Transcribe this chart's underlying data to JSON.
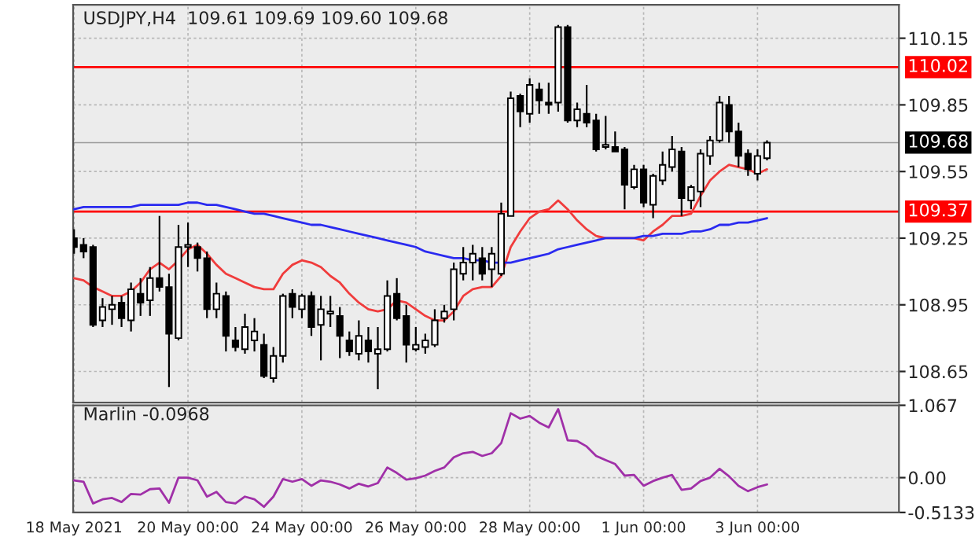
{
  "chart_data": [
    {
      "type": "candlestick",
      "title": "USDJPY,H4  109.61 109.69 109.60 109.68",
      "categories": [
        null,
        null,
        null,
        null,
        null,
        null,
        null,
        null,
        null,
        null,
        null,
        null,
        null,
        null,
        null,
        null,
        null,
        null,
        null,
        null,
        null,
        null,
        null,
        null,
        null,
        null,
        null,
        null,
        null,
        null,
        null,
        null,
        null,
        null,
        null,
        null,
        null,
        null,
        null,
        null,
        null,
        null,
        null,
        null,
        null,
        null,
        null,
        null,
        null,
        null,
        null,
        null,
        null,
        null,
        null,
        null,
        null,
        null,
        null,
        null,
        null,
        null,
        null,
        null,
        null,
        null,
        null,
        null,
        null,
        null,
        null,
        null,
        null,
        null
      ],
      "ohlc": [
        [
          109.25,
          109.29,
          109.18,
          109.21
        ],
        [
          109.22,
          109.25,
          109.16,
          109.19
        ],
        [
          109.21,
          109.22,
          108.85,
          108.86
        ],
        [
          108.88,
          108.98,
          108.85,
          108.94
        ],
        [
          108.93,
          108.99,
          108.86,
          108.95
        ],
        [
          108.96,
          108.99,
          108.85,
          108.89
        ],
        [
          108.88,
          109.05,
          108.83,
          109.02
        ],
        [
          109.0,
          109.07,
          108.9,
          108.96
        ],
        [
          108.97,
          109.12,
          108.9,
          109.07
        ],
        [
          109.07,
          109.35,
          109.01,
          109.03
        ],
        [
          109.03,
          109.09,
          108.58,
          108.82
        ],
        [
          108.8,
          109.31,
          108.79,
          109.21
        ],
        [
          109.21,
          109.32,
          109.12,
          109.22
        ],
        [
          109.21,
          109.23,
          109.1,
          109.16
        ],
        [
          109.16,
          109.19,
          108.89,
          108.93
        ],
        [
          108.93,
          109.05,
          108.89,
          109.0
        ],
        [
          108.99,
          109.01,
          108.74,
          108.81
        ],
        [
          108.79,
          108.85,
          108.74,
          108.76
        ],
        [
          108.75,
          108.91,
          108.73,
          108.85
        ],
        [
          108.79,
          108.89,
          108.74,
          108.83
        ],
        [
          108.77,
          108.82,
          108.62,
          108.63
        ],
        [
          108.62,
          108.76,
          108.6,
          108.72
        ],
        [
          108.72,
          109.0,
          108.69,
          108.99
        ],
        [
          109.0,
          109.02,
          108.89,
          108.94
        ],
        [
          108.93,
          109.0,
          108.89,
          108.99
        ],
        [
          108.99,
          109.01,
          108.81,
          108.85
        ],
        [
          108.86,
          108.99,
          108.7,
          108.93
        ],
        [
          108.91,
          108.99,
          108.85,
          108.92
        ],
        [
          108.9,
          108.94,
          108.71,
          108.81
        ],
        [
          108.79,
          108.83,
          108.72,
          108.74
        ],
        [
          108.73,
          108.88,
          108.7,
          108.81
        ],
        [
          108.79,
          108.85,
          108.69,
          108.74
        ],
        [
          108.73,
          108.85,
          108.57,
          108.75
        ],
        [
          108.75,
          109.06,
          108.74,
          108.99
        ],
        [
          109.0,
          109.07,
          108.88,
          108.89
        ],
        [
          108.9,
          108.95,
          108.69,
          108.77
        ],
        [
          108.75,
          108.85,
          108.74,
          108.77
        ],
        [
          108.76,
          108.82,
          108.73,
          108.79
        ],
        [
          108.77,
          108.93,
          108.76,
          108.88
        ],
        [
          108.89,
          108.95,
          108.87,
          108.92
        ],
        [
          108.93,
          109.14,
          108.88,
          109.11
        ],
        [
          109.09,
          109.21,
          109.06,
          109.14
        ],
        [
          109.14,
          109.22,
          109.06,
          109.18
        ],
        [
          109.16,
          109.21,
          109.06,
          109.09
        ],
        [
          109.11,
          109.21,
          109.03,
          109.18
        ],
        [
          109.09,
          109.41,
          109.08,
          109.36
        ],
        [
          109.35,
          109.91,
          109.35,
          109.88
        ],
        [
          109.89,
          109.9,
          109.75,
          109.82
        ],
        [
          109.81,
          109.97,
          109.77,
          109.94
        ],
        [
          109.92,
          109.95,
          109.81,
          109.87
        ],
        [
          109.86,
          109.95,
          109.81,
          109.85
        ],
        [
          109.86,
          110.21,
          109.82,
          110.2
        ],
        [
          110.2,
          110.21,
          109.77,
          109.78
        ],
        [
          109.78,
          109.86,
          109.75,
          109.83
        ],
        [
          109.81,
          109.94,
          109.75,
          109.77
        ],
        [
          109.78,
          109.81,
          109.64,
          109.65
        ],
        [
          109.66,
          109.8,
          109.65,
          109.67
        ],
        [
          109.66,
          109.73,
          109.64,
          109.64
        ],
        [
          109.65,
          109.66,
          109.38,
          109.49
        ],
        [
          109.48,
          109.58,
          109.47,
          109.56
        ],
        [
          109.56,
          109.58,
          109.39,
          109.41
        ],
        [
          109.4,
          109.54,
          109.34,
          109.53
        ],
        [
          109.51,
          109.64,
          109.49,
          109.58
        ],
        [
          109.57,
          109.71,
          109.55,
          109.65
        ],
        [
          109.64,
          109.66,
          109.35,
          109.43
        ],
        [
          109.42,
          109.49,
          109.38,
          109.48
        ],
        [
          109.46,
          109.65,
          109.39,
          109.63
        ],
        [
          109.62,
          109.71,
          109.58,
          109.69
        ],
        [
          109.69,
          109.89,
          109.68,
          109.86
        ],
        [
          109.85,
          109.89,
          109.68,
          109.73
        ],
        [
          109.73,
          109.77,
          109.57,
          109.62
        ],
        [
          109.63,
          109.65,
          109.53,
          109.56
        ],
        [
          109.54,
          109.65,
          109.51,
          109.62
        ],
        [
          109.61,
          109.69,
          109.6,
          109.68
        ]
      ],
      "series": [
        {
          "type": "line",
          "color": "#f03c3c",
          "values": [
            109.07,
            109.06,
            109.03,
            109.01,
            108.99,
            108.99,
            109.01,
            109.05,
            109.11,
            109.14,
            109.11,
            109.15,
            109.2,
            109.22,
            109.18,
            109.13,
            109.09,
            109.07,
            109.05,
            109.03,
            109.02,
            109.02,
            109.09,
            109.13,
            109.15,
            109.14,
            109.12,
            109.08,
            109.05,
            109.0,
            108.96,
            108.93,
            108.92,
            108.93,
            108.97,
            108.96,
            108.93,
            108.9,
            108.88,
            108.88,
            108.92,
            108.99,
            109.02,
            109.03,
            109.03,
            109.08,
            109.21,
            109.28,
            109.34,
            109.37,
            109.38,
            109.42,
            109.38,
            109.33,
            109.29,
            109.26,
            109.25,
            109.25,
            109.25,
            109.25,
            109.24,
            109.28,
            109.31,
            109.35,
            109.35,
            109.36,
            109.44,
            109.51,
            109.55,
            109.58,
            109.57,
            109.56,
            109.54,
            109.56
          ]
        },
        {
          "type": "line",
          "color": "#2a2af0",
          "values": [
            109.38,
            109.39,
            109.39,
            109.39,
            109.39,
            109.39,
            109.39,
            109.4,
            109.4,
            109.4,
            109.4,
            109.4,
            109.41,
            109.41,
            109.4,
            109.4,
            109.39,
            109.38,
            109.37,
            109.36,
            109.36,
            109.35,
            109.34,
            109.33,
            109.32,
            109.31,
            109.31,
            109.3,
            109.29,
            109.28,
            109.27,
            109.26,
            109.25,
            109.24,
            109.23,
            109.22,
            109.21,
            109.19,
            109.18,
            109.17,
            109.16,
            109.16,
            109.15,
            109.15,
            109.14,
            109.14,
            109.14,
            109.15,
            109.16,
            109.17,
            109.18,
            109.2,
            109.21,
            109.22,
            109.23,
            109.24,
            109.25,
            109.25,
            109.25,
            109.25,
            109.26,
            109.26,
            109.27,
            109.27,
            109.27,
            109.28,
            109.28,
            109.29,
            109.31,
            109.31,
            109.32,
            109.32,
            109.33,
            109.34
          ]
        }
      ],
      "ylim": [
        108.51,
        110.3
      ],
      "yticks": [
        108.65,
        108.95,
        109.25,
        109.55,
        109.85,
        110.15
      ],
      "ref_lines": [
        {
          "axis": "y",
          "value": 110.02,
          "label": "110.02",
          "color": "#ff0000"
        },
        {
          "axis": "y",
          "value": 109.37,
          "label": "109.37",
          "color": "#ff0000"
        },
        {
          "axis": "y",
          "value": 109.68,
          "label": "109.68",
          "color": "#000000"
        }
      ],
      "grid": true,
      "tick_labels": "y"
    },
    {
      "type": "line",
      "title": "Marlin -0.0968",
      "categories": [
        "18 May 2021",
        null,
        null,
        null,
        null,
        null,
        null,
        null,
        null,
        null,
        null,
        null,
        "20 May 00:00",
        null,
        null,
        null,
        null,
        null,
        null,
        null,
        null,
        null,
        null,
        null,
        "24 May 00:00",
        null,
        null,
        null,
        null,
        null,
        null,
        null,
        null,
        null,
        null,
        null,
        "26 May 00:00",
        null,
        null,
        null,
        null,
        null,
        null,
        null,
        null,
        null,
        null,
        null,
        "28 May 00:00",
        null,
        null,
        null,
        null,
        null,
        null,
        null,
        null,
        null,
        null,
        null,
        "1 Jun 00:00",
        null,
        null,
        null,
        null,
        null,
        null,
        null,
        null,
        null,
        null,
        null,
        "3 Jun 00:00",
        null
      ],
      "series": [
        {
          "color": "#a030a8",
          "values": [
            -0.04,
            -0.06,
            -0.38,
            -0.32,
            -0.3,
            -0.36,
            -0.24,
            -0.25,
            -0.17,
            -0.16,
            -0.37,
            0.0,
            0.0,
            -0.04,
            -0.28,
            -0.21,
            -0.36,
            -0.38,
            -0.28,
            -0.32,
            -0.43,
            -0.28,
            -0.02,
            -0.06,
            -0.02,
            -0.12,
            -0.04,
            -0.06,
            -0.1,
            -0.16,
            -0.09,
            -0.13,
            -0.08,
            0.15,
            0.07,
            -0.03,
            -0.01,
            0.03,
            0.1,
            0.15,
            0.3,
            0.36,
            0.38,
            0.32,
            0.36,
            0.51,
            0.95,
            0.87,
            0.91,
            0.81,
            0.74,
            1.01,
            0.55,
            0.54,
            0.46,
            0.32,
            0.26,
            0.2,
            0.03,
            0.04,
            -0.12,
            -0.05,
            0.0,
            0.04,
            -0.18,
            -0.16,
            -0.05,
            0.0,
            0.13,
            0.02,
            -0.12,
            -0.2,
            -0.14,
            -0.1
          ]
        }
      ],
      "ylim": [
        -0.5133,
        1.067
      ],
      "yticks": [
        1.067,
        {
          "value": 0,
          "label": "0.00"
        },
        -0.5133
      ],
      "grid": true
    }
  ]
}
